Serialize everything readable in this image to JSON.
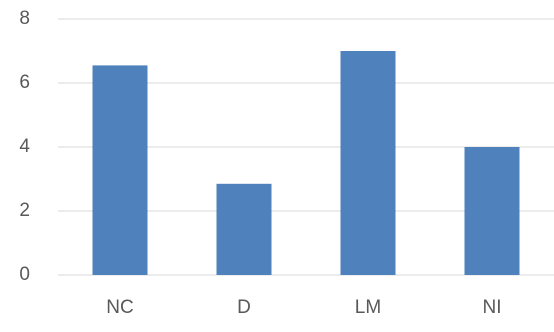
{
  "chart_data": {
    "type": "bar",
    "categories": [
      "NC",
      "D",
      "LM",
      "NI"
    ],
    "values": [
      6.55,
      2.85,
      7.0,
      4.0
    ],
    "ylim": [
      0,
      8
    ],
    "yticks": [
      0,
      2,
      4,
      6,
      8
    ],
    "title": "",
    "xlabel": "",
    "ylabel": "",
    "grid": true,
    "bar_color": "#4f81bd",
    "grid_color": "#d9d9d9",
    "tick_label_color": "#595959"
  }
}
